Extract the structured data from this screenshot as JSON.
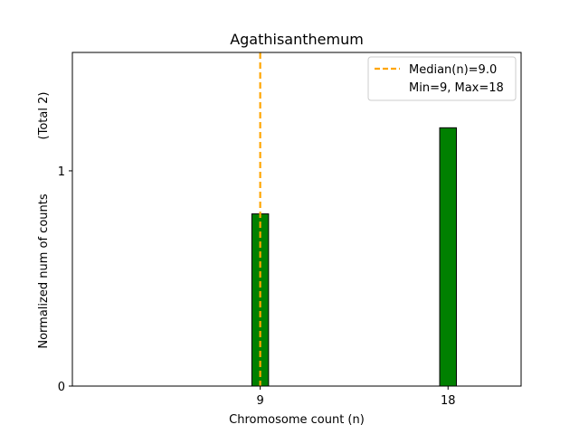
{
  "chart_data": {
    "type": "bar",
    "title": "Agathisanthemum",
    "xlabel": "Chromosome count (n)",
    "ylabel": "Normalized num of counts",
    "ylabel_extra": "(Total 2)",
    "x": [
      9,
      18
    ],
    "values": [
      0.8,
      1.2
    ],
    "xlim": [
      0,
      21.5
    ],
    "ylim": [
      0,
      1.55
    ],
    "xticks": [
      "9",
      "18"
    ],
    "yticks": [
      "0",
      "1"
    ],
    "median": 9.0,
    "legend": {
      "position": "top-right",
      "median_label": "Median(n)=9.0",
      "range_label": "Min=9, Max=18"
    },
    "colors": {
      "bar": "#008000",
      "bar_edge": "#000000",
      "median_line": "#ffa500"
    }
  }
}
